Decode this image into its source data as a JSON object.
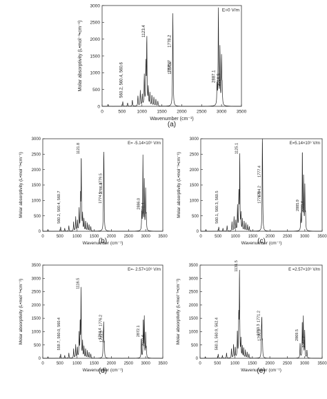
{
  "chart_data": [
    {
      "type": "line",
      "panel_label": "(a)",
      "legend": "E=0 V/m",
      "xlabel": "Wavenumber (cm⁻¹)",
      "ylabel": "Molar absorptivity (L•mol⁻¹•cm⁻¹)",
      "xlim": [
        0,
        3500
      ],
      "ylim": [
        0,
        3000
      ],
      "xticks": [
        0,
        500,
        1000,
        1500,
        2000,
        2500,
        3000,
        3500
      ],
      "yticks": [
        0,
        500,
        1000,
        1500,
        2000,
        2500,
        3000
      ],
      "peaks": [
        {
          "x": 150,
          "y": 60
        },
        {
          "x": 520,
          "y": 140
        },
        {
          "x": 640,
          "y": 100
        },
        {
          "x": 760,
          "y": 180
        },
        {
          "x": 900,
          "y": 300
        },
        {
          "x": 960,
          "y": 460
        },
        {
          "x": 1010,
          "y": 350
        },
        {
          "x": 1060,
          "y": 900
        },
        {
          "x": 1100,
          "y": 1200
        },
        {
          "x": 1123,
          "y": 2000
        },
        {
          "x": 1160,
          "y": 520
        },
        {
          "x": 1200,
          "y": 380
        },
        {
          "x": 1250,
          "y": 320
        },
        {
          "x": 1300,
          "y": 260
        },
        {
          "x": 1350,
          "y": 210
        },
        {
          "x": 1400,
          "y": 150
        },
        {
          "x": 1775,
          "y": 1200
        },
        {
          "x": 1778,
          "y": 1720
        },
        {
          "x": 2887,
          "y": 600
        },
        {
          "x": 2920,
          "y": 2850
        },
        {
          "x": 2960,
          "y": 1680
        },
        {
          "x": 3000,
          "y": 1400
        },
        {
          "x": 3016,
          "y": 500
        }
      ],
      "annotations": [
        {
          "text": "560.2, 560.4, 560.6",
          "x": 560,
          "y": 250
        },
        {
          "text": "1123.4",
          "x": 1123,
          "y": 2050
        },
        {
          "text": "1775.7",
          "x": 1775,
          "y": 1000
        },
        {
          "text": "1778.2",
          "x": 1778,
          "y": 1750
        },
        {
          "text": "1784.9",
          "x": 1785,
          "y": 950
        },
        {
          "text": "2887.1",
          "x": 2887,
          "y": 700
        },
        {
          "text": "3016.5",
          "x": 3016,
          "y": 600
        }
      ]
    },
    {
      "type": "line",
      "panel_label": "(b)",
      "legend": "E= -5.14×10⁹ V/m",
      "xlabel": "Wavenumber (cm⁻¹)",
      "ylabel": "Molar absorptivity (L•mol⁻¹•cm⁻¹)",
      "xlim": [
        0,
        3500
      ],
      "ylim": [
        0,
        3000
      ],
      "xticks": [
        0,
        500,
        1000,
        1500,
        2000,
        2500,
        3000,
        3500
      ],
      "yticks": [
        0,
        500,
        1000,
        1500,
        2000,
        2500,
        3000
      ],
      "peaks": [
        {
          "x": 150,
          "y": 60
        },
        {
          "x": 520,
          "y": 140
        },
        {
          "x": 640,
          "y": 100
        },
        {
          "x": 760,
          "y": 180
        },
        {
          "x": 900,
          "y": 300
        },
        {
          "x": 960,
          "y": 460
        },
        {
          "x": 1010,
          "y": 350
        },
        {
          "x": 1060,
          "y": 700
        },
        {
          "x": 1100,
          "y": 1050
        },
        {
          "x": 1122,
          "y": 2400
        },
        {
          "x": 1160,
          "y": 520
        },
        {
          "x": 1200,
          "y": 380
        },
        {
          "x": 1250,
          "y": 320
        },
        {
          "x": 1300,
          "y": 260
        },
        {
          "x": 1350,
          "y": 210
        },
        {
          "x": 1400,
          "y": 150
        },
        {
          "x": 1774,
          "y": 1050
        },
        {
          "x": 1780,
          "y": 1450
        },
        {
          "x": 1786,
          "y": 900
        },
        {
          "x": 2886,
          "y": 600
        },
        {
          "x": 2920,
          "y": 2400
        },
        {
          "x": 2960,
          "y": 1600
        },
        {
          "x": 3000,
          "y": 1300
        },
        {
          "x": 3020,
          "y": 450
        }
      ],
      "annotations": [
        {
          "text": "560.2, 560.4, 560.7",
          "x": 560,
          "y": 250
        },
        {
          "text": "1121.8",
          "x": 1122,
          "y": 2500
        },
        {
          "text": "1774.5",
          "x": 1774,
          "y": 900
        },
        {
          "text": "1779.5",
          "x": 1780,
          "y": 1500
        },
        {
          "text": "1786.4",
          "x": 1786,
          "y": 1200
        },
        {
          "text": "2886.0",
          "x": 2886,
          "y": 700
        },
        {
          "text": "3020.4",
          "x": 3020,
          "y": 550
        }
      ]
    },
    {
      "type": "line",
      "panel_label": "(c)",
      "legend": "E=5.14×10⁹ V/m",
      "xlabel": "Wavenumber (cm⁻¹)",
      "ylabel": "Molar absorptivity (L•mol⁻¹•cm⁻¹)",
      "xlim": [
        0,
        3500
      ],
      "ylim": [
        0,
        3000
      ],
      "xticks": [
        0,
        500,
        1000,
        1500,
        2000,
        2500,
        3000,
        3500
      ],
      "yticks": [
        0,
        500,
        1000,
        1500,
        2000,
        2500,
        3000
      ],
      "peaks": [
        {
          "x": 150,
          "y": 60
        },
        {
          "x": 520,
          "y": 140
        },
        {
          "x": 640,
          "y": 100
        },
        {
          "x": 760,
          "y": 180
        },
        {
          "x": 900,
          "y": 300
        },
        {
          "x": 960,
          "y": 460
        },
        {
          "x": 1010,
          "y": 350
        },
        {
          "x": 1060,
          "y": 800
        },
        {
          "x": 1100,
          "y": 1150
        },
        {
          "x": 1125,
          "y": 2450
        },
        {
          "x": 1160,
          "y": 520
        },
        {
          "x": 1200,
          "y": 380
        },
        {
          "x": 1250,
          "y": 320
        },
        {
          "x": 1300,
          "y": 260
        },
        {
          "x": 1350,
          "y": 210
        },
        {
          "x": 1400,
          "y": 150
        },
        {
          "x": 1775,
          "y": 1100
        },
        {
          "x": 1777,
          "y": 1700
        },
        {
          "x": 1784,
          "y": 900
        },
        {
          "x": 2886,
          "y": 550
        },
        {
          "x": 2930,
          "y": 2650
        },
        {
          "x": 2965,
          "y": 1700
        },
        {
          "x": 3000,
          "y": 1400
        },
        {
          "x": 3020,
          "y": 480
        }
      ],
      "annotations": [
        {
          "text": "560.1, 560.3, 560.5",
          "x": 560,
          "y": 250
        },
        {
          "text": "1125.1",
          "x": 1125,
          "y": 2500
        },
        {
          "text": "1774.9",
          "x": 1775,
          "y": 900
        },
        {
          "text": "1777.4",
          "x": 1777,
          "y": 1750
        },
        {
          "text": "1784.2",
          "x": 1784,
          "y": 1100
        },
        {
          "text": "2885.9",
          "x": 2886,
          "y": 650
        },
        {
          "text": "3020.4",
          "x": 3020,
          "y": 600
        }
      ]
    },
    {
      "type": "line",
      "panel_label": "(d)",
      "legend": "E=- 2.57×10⁹ V/m",
      "xlabel": "Wavenumber (cm⁻¹)",
      "ylabel": "Molar absorptivity (L•mol⁻¹•cm⁻¹)",
      "xlim": [
        0,
        3500
      ],
      "ylim": [
        0,
        3500
      ],
      "xticks": [
        0,
        500,
        1000,
        1500,
        2000,
        2500,
        3000,
        3500
      ],
      "yticks": [
        0,
        500,
        1000,
        1500,
        2000,
        2500,
        3000,
        3500
      ],
      "peaks": [
        {
          "x": 150,
          "y": 60
        },
        {
          "x": 520,
          "y": 160
        },
        {
          "x": 640,
          "y": 110
        },
        {
          "x": 760,
          "y": 200
        },
        {
          "x": 900,
          "y": 350
        },
        {
          "x": 960,
          "y": 500
        },
        {
          "x": 1010,
          "y": 400
        },
        {
          "x": 1060,
          "y": 900
        },
        {
          "x": 1090,
          "y": 1300
        },
        {
          "x": 1116,
          "y": 2550
        },
        {
          "x": 1160,
          "y": 600
        },
        {
          "x": 1200,
          "y": 420
        },
        {
          "x": 1250,
          "y": 350
        },
        {
          "x": 1300,
          "y": 280
        },
        {
          "x": 1350,
          "y": 220
        },
        {
          "x": 1400,
          "y": 160
        },
        {
          "x": 1764,
          "y": 650
        },
        {
          "x": 1776,
          "y": 1150
        },
        {
          "x": 1795,
          "y": 500
        },
        {
          "x": 2872,
          "y": 700
        },
        {
          "x": 2930,
          "y": 1450
        },
        {
          "x": 2960,
          "y": 1500
        },
        {
          "x": 3000,
          "y": 900
        },
        {
          "x": 3021,
          "y": 350
        }
      ],
      "annotations": [
        {
          "text": "559.7, 560.0, 560.4",
          "x": 560,
          "y": 300
        },
        {
          "text": "1116.5",
          "x": 1116,
          "y": 2600
        },
        {
          "text": "1764.4",
          "x": 1764,
          "y": 700
        },
        {
          "text": "1776.2",
          "x": 1776,
          "y": 1200
        },
        {
          "text": "1795.9",
          "x": 1796,
          "y": 600
        },
        {
          "text": "2872.1",
          "x": 2872,
          "y": 800
        },
        {
          "text": "3021.6",
          "x": 3021,
          "y": 450
        }
      ]
    },
    {
      "type": "line",
      "panel_label": "(e)",
      "legend": "E =2.57×10⁹ V/m",
      "xlabel": "Wavenumber (cm⁻¹)",
      "ylabel": "Molar absorptivity (L•mol⁻¹•cm⁻¹)",
      "xlim": [
        0,
        3500
      ],
      "ylim": [
        0,
        3500
      ],
      "xticks": [
        0,
        500,
        1000,
        1500,
        2000,
        2500,
        3000,
        3500
      ],
      "yticks": [
        0,
        500,
        1000,
        1500,
        2000,
        2500,
        3000,
        3500
      ],
      "peaks": [
        {
          "x": 150,
          "y": 60
        },
        {
          "x": 520,
          "y": 160
        },
        {
          "x": 640,
          "y": 110
        },
        {
          "x": 760,
          "y": 200
        },
        {
          "x": 900,
          "y": 350
        },
        {
          "x": 960,
          "y": 500
        },
        {
          "x": 1010,
          "y": 400
        },
        {
          "x": 1070,
          "y": 1000
        },
        {
          "x": 1110,
          "y": 1500
        },
        {
          "x": 1131,
          "y": 3200
        },
        {
          "x": 1170,
          "y": 700
        },
        {
          "x": 1210,
          "y": 450
        },
        {
          "x": 1250,
          "y": 380
        },
        {
          "x": 1300,
          "y": 300
        },
        {
          "x": 1350,
          "y": 230
        },
        {
          "x": 1400,
          "y": 160
        },
        {
          "x": 1760,
          "y": 800
        },
        {
          "x": 1771,
          "y": 1300
        },
        {
          "x": 1790,
          "y": 550
        },
        {
          "x": 2869,
          "y": 550
        },
        {
          "x": 2930,
          "y": 1350
        },
        {
          "x": 2960,
          "y": 1500
        },
        {
          "x": 3000,
          "y": 1000
        },
        {
          "x": 3062,
          "y": 300
        }
      ],
      "annotations": [
        {
          "text": "560.3, 560.9, 562.4",
          "x": 560,
          "y": 300
        },
        {
          "text": "1131.5",
          "x": 1131,
          "y": 3250
        },
        {
          "text": "1760.3",
          "x": 1760,
          "y": 850
        },
        {
          "text": "1771.2",
          "x": 1771,
          "y": 1350
        },
        {
          "text": "1790.5",
          "x": 1790,
          "y": 650
        },
        {
          "text": "2869.5",
          "x": 2869,
          "y": 650
        },
        {
          "text": "3062.2",
          "x": 3062,
          "y": 400
        }
      ]
    }
  ]
}
